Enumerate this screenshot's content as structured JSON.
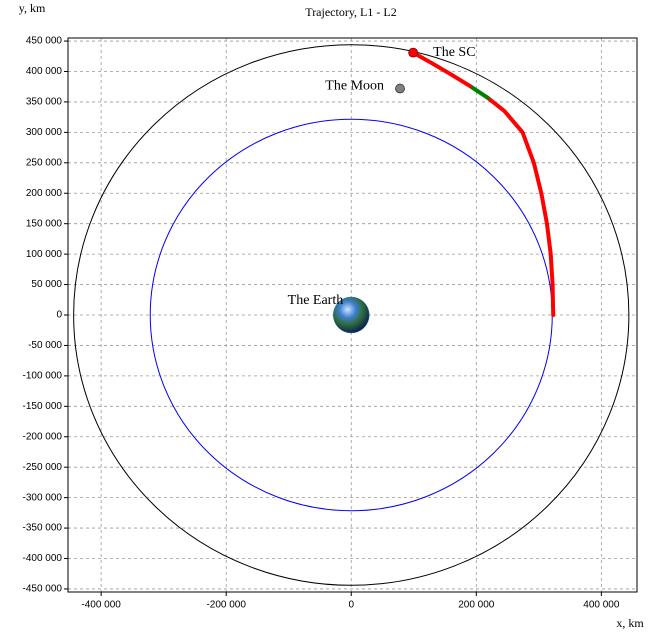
{
  "chart_data": {
    "type": "line",
    "title": "Trajectory, L1 - L2",
    "y_label": "y, km",
    "x_label": "x, km",
    "xlim": [
      -453000,
      457000
    ],
    "ylim": [
      -455000,
      455000
    ],
    "xticks": [
      {
        "value": -400000,
        "label": "-400 000"
      },
      {
        "value": -200000,
        "label": "-200 000"
      },
      0,
      {
        "value": 200000,
        "label": "200 000"
      },
      {
        "value": 400000,
        "label": "400 000"
      }
    ],
    "yticks": [
      {
        "value": 450000,
        "label": "450 000"
      },
      {
        "value": 400000,
        "label": "400 000"
      },
      {
        "value": 350000,
        "label": "350 000"
      },
      {
        "value": 300000,
        "label": "300 000"
      },
      {
        "value": 250000,
        "label": "250 000"
      },
      {
        "value": 200000,
        "label": "200 000"
      },
      {
        "value": 150000,
        "label": "150 000"
      },
      {
        "value": 100000,
        "label": "100 000"
      },
      {
        "value": 50000,
        "label": "50 000"
      },
      0,
      {
        "value": -50000,
        "label": "-50 000"
      },
      {
        "value": -100000,
        "label": "-100 000"
      },
      {
        "value": -150000,
        "label": "-150 000"
      },
      {
        "value": -200000,
        "label": "-200 000"
      },
      {
        "value": -250000,
        "label": "-250 000"
      },
      {
        "value": -300000,
        "label": "-300 000"
      },
      {
        "value": -350000,
        "label": "-350 000"
      },
      {
        "value": -400000,
        "label": "-400 000"
      },
      {
        "value": -450000,
        "label": "-450 000"
      }
    ],
    "grid": true,
    "circles": [
      {
        "radius": 444000,
        "color": "#000000"
      },
      {
        "radius": 321500,
        "color": "#0000ff"
      }
    ],
    "series": [
      {
        "color": "#ff0000",
        "x": [
          323000,
          322000,
          319000,
          313000,
          304000,
          292000,
          274000,
          245000,
          218000
        ],
        "values": [
          0,
          50000,
          100000,
          150000,
          200000,
          250000,
          300000,
          335000,
          357000
        ]
      },
      {
        "color": "#008000",
        "x": [
          218000,
          190000
        ],
        "values": [
          357000,
          376000
        ]
      },
      {
        "color": "#ff0000",
        "x": [
          190000,
          160000,
          130000,
          99000
        ],
        "values": [
          376000,
          395000,
          413000,
          431000
        ]
      }
    ],
    "points": [
      {
        "label": "The Earth",
        "x": 0,
        "y": 0,
        "color": "#2a6fb8"
      },
      {
        "label": "The Moon",
        "x": 78000,
        "y": 372000,
        "color": "#808080"
      },
      {
        "label": "The SC",
        "x": 99000,
        "y": 431000,
        "color": "#ff0000"
      }
    ]
  }
}
